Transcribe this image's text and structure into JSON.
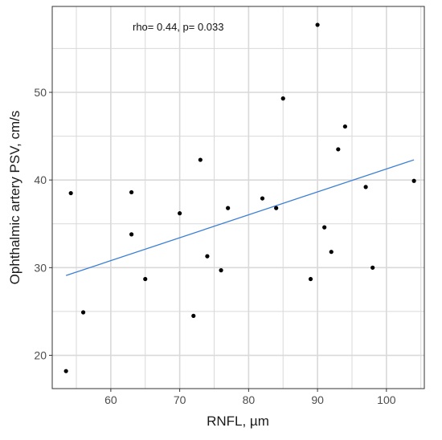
{
  "chart_data": {
    "type": "scatter",
    "xlabel": "RNFL, µm",
    "ylabel": "Ophthalmic artery PSV, cm/s",
    "annotation": "rho= 0.44, p= 0.033",
    "xlim": [
      51.5,
      105.5
    ],
    "ylim": [
      16.2,
      59.8
    ],
    "x_ticks": [
      60,
      70,
      80,
      90,
      100
    ],
    "y_ticks": [
      20,
      30,
      40,
      50
    ],
    "x_tick_labels": [
      "60",
      "70",
      "80",
      "90",
      "100"
    ],
    "y_tick_labels": [
      "20",
      "30",
      "40",
      "50"
    ],
    "x_minor_ticks": [
      55,
      65,
      75,
      85,
      95,
      105
    ],
    "y_minor_ticks": [
      25,
      35,
      45,
      55
    ],
    "grid": true,
    "points": [
      {
        "x": 53.5,
        "y": 18.2
      },
      {
        "x": 54.2,
        "y": 38.5
      },
      {
        "x": 56.0,
        "y": 24.9
      },
      {
        "x": 63.0,
        "y": 38.6
      },
      {
        "x": 63.0,
        "y": 33.8
      },
      {
        "x": 65.0,
        "y": 28.7
      },
      {
        "x": 70.0,
        "y": 36.2
      },
      {
        "x": 72.0,
        "y": 24.5
      },
      {
        "x": 73.0,
        "y": 42.3
      },
      {
        "x": 74.0,
        "y": 31.3
      },
      {
        "x": 76.0,
        "y": 29.7
      },
      {
        "x": 77.0,
        "y": 36.8
      },
      {
        "x": 82.0,
        "y": 37.9
      },
      {
        "x": 84.0,
        "y": 36.8
      },
      {
        "x": 85.0,
        "y": 49.3
      },
      {
        "x": 89.0,
        "y": 28.7
      },
      {
        "x": 90.0,
        "y": 57.7
      },
      {
        "x": 91.0,
        "y": 34.6
      },
      {
        "x": 92.0,
        "y": 31.8
      },
      {
        "x": 93.0,
        "y": 43.5
      },
      {
        "x": 94.0,
        "y": 46.1
      },
      {
        "x": 97.0,
        "y": 39.2
      },
      {
        "x": 98.0,
        "y": 30.0
      },
      {
        "x": 104.0,
        "y": 39.9
      }
    ],
    "fit_line": {
      "x": [
        53.5,
        104.0
      ],
      "y": [
        29.1,
        42.3
      ]
    },
    "colors": {
      "background": "#ffffff",
      "grid": "#d9d9d9",
      "border": "#333333",
      "points": "#000000",
      "fit_line": "#3d7fd6"
    }
  }
}
